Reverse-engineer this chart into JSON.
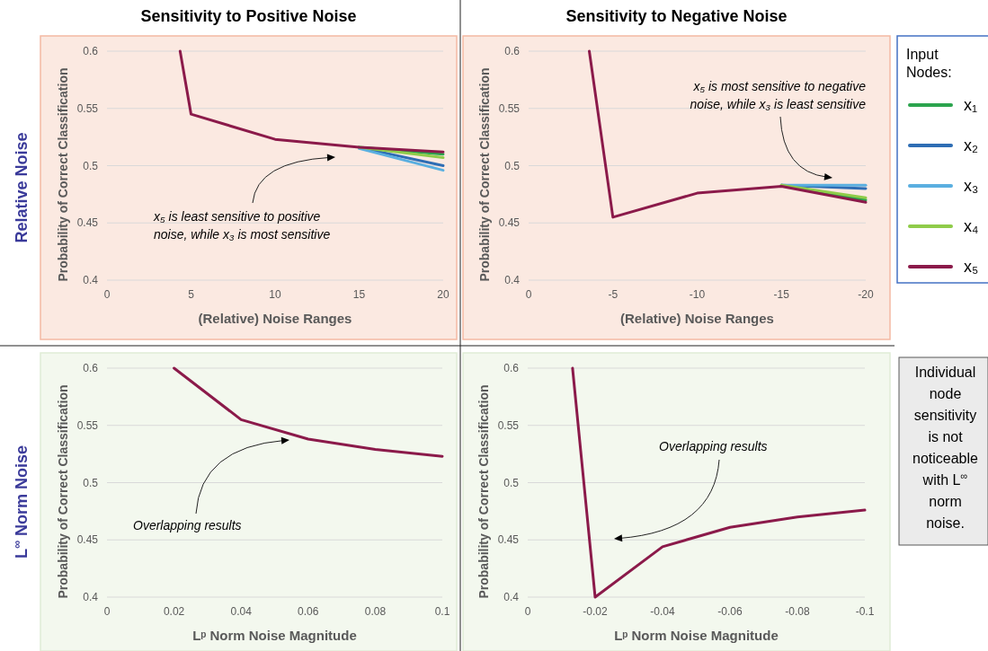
{
  "chart_data": [
    {
      "type": "line",
      "title": "Sensitivity to Positive Noise",
      "subtitle": "Relative Noise",
      "xlabel": "(Relative) Noise Ranges",
      "ylabel": "Probability of Correct Classification",
      "x": [
        4.35,
        5,
        10,
        15,
        20
      ],
      "xlim": [
        0,
        20
      ],
      "xticks": [
        0,
        5,
        10,
        15,
        20
      ],
      "ylim": [
        0.4,
        0.6
      ],
      "yticks": [
        0.4,
        0.45,
        0.5,
        0.55,
        0.6
      ],
      "grid": "y",
      "legend": false,
      "series": [
        {
          "color": "#2ca44e",
          "values": [
            null,
            null,
            null,
            0.516,
            0.51
          ]
        },
        {
          "color": "#2e6db4",
          "values": [
            null,
            null,
            null,
            0.516,
            0.5
          ]
        },
        {
          "color": "#5aafe0",
          "values": [
            null,
            null,
            null,
            0.515,
            0.496
          ]
        },
        {
          "color": "#8fcc4a",
          "values": [
            null,
            null,
            null,
            0.516,
            0.507
          ]
        },
        {
          "color": "#8b1a4a",
          "values": [
            0.6,
            0.545,
            0.523,
            0.516,
            0.512
          ]
        }
      ],
      "annotations": [
        "x₅ is least sensitive to positive noise, while x₃ is most sensitive"
      ]
    },
    {
      "type": "line",
      "title": "Sensitivity to Negative Noise",
      "xlabel": "(Relative) Noise Ranges",
      "ylabel": "Probability of Correct Classification",
      "x": [
        -3.6,
        -5,
        -10,
        -15,
        -20
      ],
      "xlim": [
        0,
        -20
      ],
      "xticks": [
        0,
        -5,
        -10,
        -15,
        -20
      ],
      "ylim": [
        0.4,
        0.6
      ],
      "yticks": [
        0.4,
        0.45,
        0.5,
        0.55,
        0.6
      ],
      "grid": "y",
      "legend": "right",
      "legend_title": "Input Nodes:",
      "series": [
        {
          "name": "x₁",
          "color": "#2ca44e",
          "values": [
            null,
            null,
            null,
            0.483,
            0.47
          ]
        },
        {
          "name": "x₂",
          "color": "#2e6db4",
          "values": [
            null,
            null,
            null,
            0.483,
            0.48
          ]
        },
        {
          "name": "x₃",
          "color": "#5aafe0",
          "values": [
            null,
            null,
            null,
            0.483,
            0.483
          ]
        },
        {
          "name": "x₄",
          "color": "#8fcc4a",
          "values": [
            null,
            null,
            null,
            0.483,
            0.472
          ]
        },
        {
          "name": "x₅",
          "color": "#8b1a4a",
          "values": [
            0.6,
            0.455,
            0.476,
            0.482,
            0.468
          ]
        }
      ],
      "annotations": [
        "x₅ is most sensitive to negative noise, while x₃ is least sensitive"
      ]
    },
    {
      "type": "line",
      "subtitle": "L$^{∞}$ Norm Noise",
      "xlabel": "Lᵖ Norm Noise Magnitude",
      "ylabel": "Probability of Correct Classification",
      "x": [
        0.02,
        0.04,
        0.06,
        0.08,
        0.1
      ],
      "xlim": [
        0,
        0.1
      ],
      "xticks": [
        0,
        0.02,
        0.04,
        0.06,
        0.08,
        0.1
      ],
      "ylim": [
        0.4,
        0.6
      ],
      "yticks": [
        0.4,
        0.45,
        0.5,
        0.55,
        0.6
      ],
      "grid": "y",
      "legend": false,
      "series": [
        {
          "color": "#8b1a4a",
          "values": [
            0.6,
            0.555,
            0.538,
            0.529,
            0.523
          ]
        }
      ],
      "annotations": [
        "Overlapping results"
      ]
    },
    {
      "type": "line",
      "xlabel": "Lᵖ Norm Noise Magnitude",
      "ylabel": "Probability of Correct Classification",
      "x": [
        -0.0133,
        -0.02,
        -0.04,
        -0.06,
        -0.08,
        -0.1
      ],
      "xlim": [
        0,
        -0.1
      ],
      "xticks": [
        0,
        -0.02,
        -0.04,
        -0.06,
        -0.08,
        -0.1
      ],
      "ylim": [
        0.4,
        0.6
      ],
      "yticks": [
        0.4,
        0.45,
        0.5,
        0.55,
        0.6
      ],
      "grid": "y",
      "legend": false,
      "series": [
        {
          "color": "#8b1a4a",
          "values": [
            0.6,
            0.4,
            0.444,
            0.461,
            0.47,
            0.476
          ]
        }
      ],
      "annotations": [
        "Overlapping results",
        "Individual node sensitivity is not noticeable with L$^{∞}$ norm noise."
      ]
    }
  ]
}
